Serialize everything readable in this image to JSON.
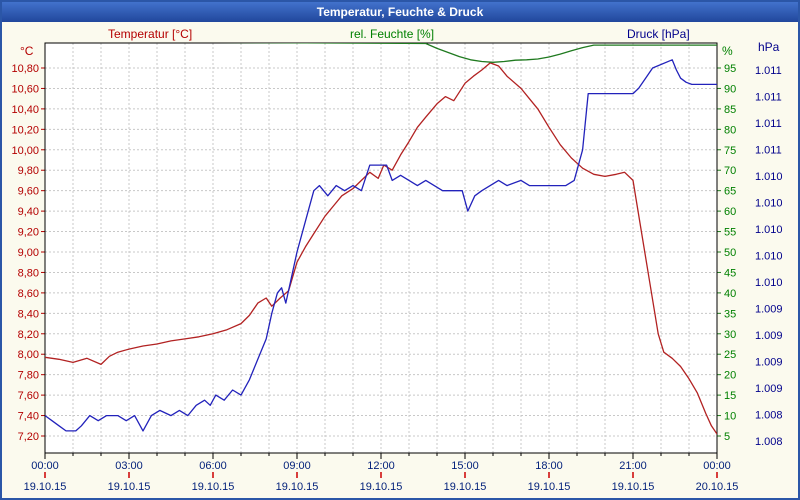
{
  "window": {
    "title": "Temperatur, Feuchte & Druck"
  },
  "legend": {
    "temperatur": "Temperatur [°C]",
    "feuchte": "rel. Feuchte [%]",
    "druck": "Druck [hPa]"
  },
  "axes": {
    "left_unit": "°C",
    "right_unit": "%",
    "far_right_unit": "hPa",
    "left_ticks": [
      "10,80",
      "10,60",
      "10,40",
      "10,20",
      "10,00",
      "9,80",
      "9,60",
      "9,40",
      "9,20",
      "9,00",
      "8,80",
      "8,60",
      "8,40",
      "8,20",
      "8,00",
      "7,80",
      "7,60",
      "7,40",
      "7,20"
    ],
    "right_ticks": [
      "95",
      "90",
      "85",
      "80",
      "75",
      "70",
      "65",
      "60",
      "55",
      "50",
      "45",
      "40",
      "35",
      "30",
      "25",
      "20",
      "15",
      "10",
      "5"
    ],
    "far_right_ticks": [
      "1.011",
      "1.011",
      "1.011",
      "1.011",
      "1.010",
      "1.010",
      "1.010",
      "1.010",
      "1.010",
      "1.009",
      "1.009",
      "1.009",
      "1.009",
      "1.008",
      "1.008"
    ],
    "x_ticks": [
      "00:00",
      "03:00",
      "06:00",
      "09:00",
      "12:00",
      "15:00",
      "18:00",
      "21:00",
      "00:00"
    ],
    "x_dates": [
      "19.10.15",
      "19.10.15",
      "19.10.15",
      "19.10.15",
      "19.10.15",
      "19.10.15",
      "19.10.15",
      "19.10.15",
      "20.10.15"
    ]
  },
  "chart_data": {
    "type": "line",
    "title": "Temperatur, Feuchte & Druck",
    "x_unit": "hours (00:00 - 24:00, 19.10.15 to 20.10.15)",
    "xlim": [
      0,
      24
    ],
    "x_tick_hours": [
      0,
      3,
      6,
      9,
      12,
      15,
      18,
      21,
      24
    ],
    "grid": true,
    "axis_ranges": {
      "temp": {
        "min": 7.2,
        "max": 10.8,
        "unit": "°C"
      },
      "humidity": {
        "min": 5,
        "max": 95,
        "unit": "%"
      },
      "pressure": {
        "min": 1.0078,
        "max": 1.0114,
        "unit": "hPa"
      }
    },
    "series": [
      {
        "id": "temperatur",
        "name": "Temperatur [°C]",
        "color": "#b22222",
        "axis": "temp",
        "x": [
          0,
          0.5,
          1,
          1.5,
          2,
          2.3,
          2.6,
          3,
          3.5,
          4,
          4.5,
          5,
          5.5,
          6,
          6.5,
          7,
          7.3,
          7.6,
          7.9,
          8.1,
          8.4,
          8.7,
          9,
          9.3,
          9.6,
          10,
          10.3,
          10.6,
          11,
          11.3,
          11.6,
          11.9,
          12.1,
          12.4,
          12.7,
          13,
          13.3,
          13.6,
          14,
          14.3,
          14.6,
          15,
          15.3,
          15.6,
          15.9,
          16.2,
          16.5,
          17,
          17.3,
          17.6,
          18,
          18.4,
          18.8,
          19.2,
          19.6,
          20,
          20.4,
          20.7,
          21,
          21.3,
          21.6,
          21.9,
          22.1,
          22.4,
          22.7,
          23,
          23.3,
          23.6,
          23.8,
          24
        ],
        "values": [
          7.97,
          7.95,
          7.92,
          7.96,
          7.9,
          7.98,
          8.02,
          8.05,
          8.08,
          8.1,
          8.13,
          8.15,
          8.17,
          8.2,
          8.24,
          8.3,
          8.38,
          8.5,
          8.55,
          8.47,
          8.55,
          8.62,
          8.9,
          9.05,
          9.18,
          9.35,
          9.45,
          9.55,
          9.62,
          9.7,
          9.78,
          9.72,
          9.85,
          9.8,
          9.95,
          10.08,
          10.22,
          10.32,
          10.45,
          10.52,
          10.48,
          10.65,
          10.72,
          10.78,
          10.85,
          10.82,
          10.72,
          10.6,
          10.5,
          10.4,
          10.22,
          10.05,
          9.92,
          9.82,
          9.76,
          9.74,
          9.76,
          9.78,
          9.7,
          9.2,
          8.7,
          8.2,
          8.02,
          7.96,
          7.88,
          7.76,
          7.62,
          7.42,
          7.3,
          7.22
        ]
      },
      {
        "id": "feuchte",
        "name": "rel. Feuchte [%]",
        "color": "#1f7a1f",
        "axis": "humidity",
        "x": [
          0,
          13.6,
          14.0,
          14.4,
          14.8,
          15.2,
          15.6,
          16.0,
          16.4,
          16.8,
          17.2,
          17.6,
          18.0,
          18.4,
          18.8,
          19.2,
          19.6,
          24
        ],
        "values": [
          101.5,
          101.0,
          99.8,
          98.8,
          97.8,
          97.0,
          96.6,
          96.4,
          96.6,
          96.9,
          97.0,
          97.2,
          97.7,
          98.4,
          99.2,
          100.0,
          100.6,
          100.6
        ]
      },
      {
        "id": "druck",
        "name": "Druck [hPa]",
        "color": "#2222bb",
        "axis": "pressure",
        "x": [
          0,
          0.25,
          0.5,
          0.75,
          1.1,
          1.3,
          1.6,
          1.9,
          2.2,
          2.6,
          2.9,
          3.2,
          3.5,
          3.8,
          4.1,
          4.5,
          4.8,
          5.1,
          5.4,
          5.7,
          5.9,
          6.1,
          6.4,
          6.7,
          7.0,
          7.3,
          7.6,
          7.9,
          8.1,
          8.3,
          8.45,
          8.6,
          8.8,
          9.0,
          9.2,
          9.4,
          9.6,
          9.8,
          10.1,
          10.4,
          10.7,
          11.0,
          11.3,
          11.6,
          12.2,
          12.4,
          12.7,
          13.0,
          13.3,
          13.6,
          13.9,
          14.2,
          14.9,
          15.1,
          15.35,
          15.6,
          15.9,
          16.2,
          16.5,
          17.0,
          17.3,
          18.6,
          18.9,
          19.2,
          19.4,
          21.0,
          21.2,
          21.45,
          21.7,
          22.4,
          22.55,
          22.7,
          22.9,
          23.1,
          24.0
        ],
        "values": [
          1.008,
          1.00795,
          1.0079,
          1.00785,
          1.00785,
          1.0079,
          1.008,
          1.00795,
          1.008,
          1.008,
          1.00795,
          1.008,
          1.00785,
          1.008,
          1.00805,
          1.008,
          1.00805,
          1.008,
          1.0081,
          1.00815,
          1.0081,
          1.0082,
          1.00815,
          1.00825,
          1.0082,
          1.00835,
          1.00855,
          1.00875,
          1.009,
          1.0092,
          1.00925,
          1.0091,
          1.00935,
          1.0096,
          1.0098,
          1.01,
          1.0102,
          1.01025,
          1.01015,
          1.01025,
          1.0102,
          1.01025,
          1.0102,
          1.01045,
          1.01045,
          1.0103,
          1.01035,
          1.0103,
          1.01025,
          1.0103,
          1.01025,
          1.0102,
          1.0102,
          1.01,
          1.01015,
          1.0102,
          1.01025,
          1.0103,
          1.01025,
          1.0103,
          1.01025,
          1.01025,
          1.0103,
          1.0106,
          1.01115,
          1.01115,
          1.0112,
          1.0113,
          1.0114,
          1.01148,
          1.01138,
          1.0113,
          1.01126,
          1.01124,
          1.01124
        ]
      }
    ]
  }
}
